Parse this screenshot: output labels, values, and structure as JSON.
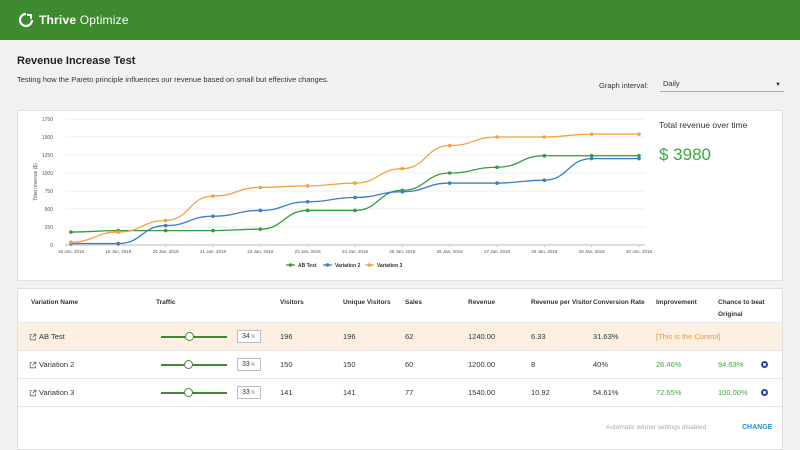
{
  "app": {
    "brand_bold": "Thrive",
    "brand_light": " Optimize"
  },
  "page": {
    "title": "Revenue Increase Test",
    "description": "Testing how the Pareto principle influences our revenue based on small but effective changes."
  },
  "interval": {
    "label": "Graph interval:",
    "value": "Daily"
  },
  "summary": {
    "label": "Total revenue over time",
    "value": "$ 3980"
  },
  "chart_data": {
    "type": "line",
    "title": "",
    "xlabel": "",
    "ylabel": "Total revenue ($)",
    "ylim": [
      0,
      1750
    ],
    "yticks": [
      0,
      250,
      500,
      750,
      1000,
      1250,
      1500,
      1750
    ],
    "categories": [
      "18 Jan, 2018",
      "19 Jan, 2018",
      "20 Jan, 2018",
      "21 Jan, 2018",
      "22 Jan, 2018",
      "23 Jan, 2018",
      "24 Jan, 2018",
      "25 Jan, 2018",
      "26 Jan, 2018",
      "27 Jan, 2018",
      "28 Jan, 2018",
      "29 Jan, 2018",
      "30 Jan, 2018"
    ],
    "grid": true,
    "legend": "bottom",
    "series": [
      {
        "name": "AB Test",
        "color": "#2e9e3e",
        "values": [
          180,
          200,
          200,
          200,
          220,
          480,
          480,
          760,
          1000,
          1080,
          1240,
          1240,
          1240
        ]
      },
      {
        "name": "Variation 2",
        "color": "#3a7dc9",
        "values": [
          20,
          20,
          270,
          400,
          480,
          600,
          660,
          740,
          860,
          860,
          900,
          1200,
          1200
        ]
      },
      {
        "name": "Variation 3",
        "color": "#f4a13a",
        "values": [
          40,
          180,
          340,
          680,
          800,
          820,
          860,
          1060,
          1380,
          1500,
          1500,
          1540,
          1540
        ]
      }
    ]
  },
  "table": {
    "headers": {
      "name": "Variation Name",
      "traffic": "Traffic",
      "visitors": "Visitors",
      "unique": "Unique Visitors",
      "sales": "Sales",
      "revenue": "Revenue",
      "rpv": "Revenue per Visitor",
      "conv": "Conversion Rate",
      "improvement": "Improvement",
      "chance_line1": "Chance to beat",
      "chance_line2": "Original"
    },
    "rows": [
      {
        "name": "AB Test",
        "traffic": "34",
        "traffic_fraction": 0.34,
        "visitors": "196",
        "unique": "196",
        "sales": "62",
        "revenue": "1240.00",
        "rpv": "6.33",
        "conv": "31.63%",
        "improvement": "[This is the Control]",
        "chance": ""
      },
      {
        "name": "Variation 2",
        "traffic": "33",
        "traffic_fraction": 0.33,
        "visitors": "150",
        "unique": "150",
        "sales": "60",
        "revenue": "1200.00",
        "rpv": "8",
        "conv": "40%",
        "improvement": "26.46%",
        "chance": "94.63%"
      },
      {
        "name": "Variation 3",
        "traffic": "33",
        "traffic_fraction": 0.33,
        "visitors": "141",
        "unique": "141",
        "sales": "77",
        "revenue": "1540.00",
        "rpv": "10.92",
        "conv": "54.61%",
        "improvement": "72.65%",
        "chance": "100.00%"
      }
    ],
    "percent_unit": "%"
  },
  "footer": {
    "note": "Automatic winner settings disabled",
    "change_label": "CHANGE"
  }
}
